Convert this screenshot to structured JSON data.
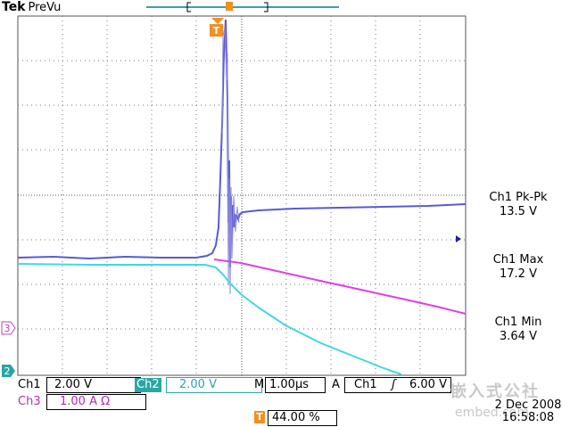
{
  "header": {
    "brand": "Tek",
    "mode": "PreVu"
  },
  "trigger_marker": "T",
  "channel_markers": {
    "ch3": "3",
    "ch2": "2"
  },
  "measurements": [
    {
      "label": "Ch1 Pk-Pk",
      "value": "13.5 V"
    },
    {
      "label": "Ch1 Max",
      "value": "17.2 V"
    },
    {
      "label": "Ch1 Min",
      "value": "3.64 V"
    }
  ],
  "status": {
    "ch1_label": "Ch1",
    "ch1_scale": "2.00 V",
    "ch2_label": "Ch2",
    "ch2_scale": "2.00 V",
    "timebase_label": "M",
    "timebase": "1.00µs",
    "trigger_mode": "A",
    "trigger_source": "Ch1",
    "trigger_slope": "ʃ",
    "trigger_level": "6.00 V",
    "ch3_label": "Ch3",
    "ch3_scale": "1.00 A Ω",
    "trigger_pos_marker": "T",
    "trigger_pos": "44.00 %",
    "date": "2 Dec 2008",
    "time": "16:58:08"
  },
  "watermark": {
    "line1": "嵌入式公社",
    "line2": "embed.com"
  },
  "colors": {
    "ch1": "#5a5ad2",
    "ch2": "#40d8e6",
    "ch3": "#e040e0",
    "trigger": "#f09020",
    "ch2_chip": "#2aa6a6"
  }
}
